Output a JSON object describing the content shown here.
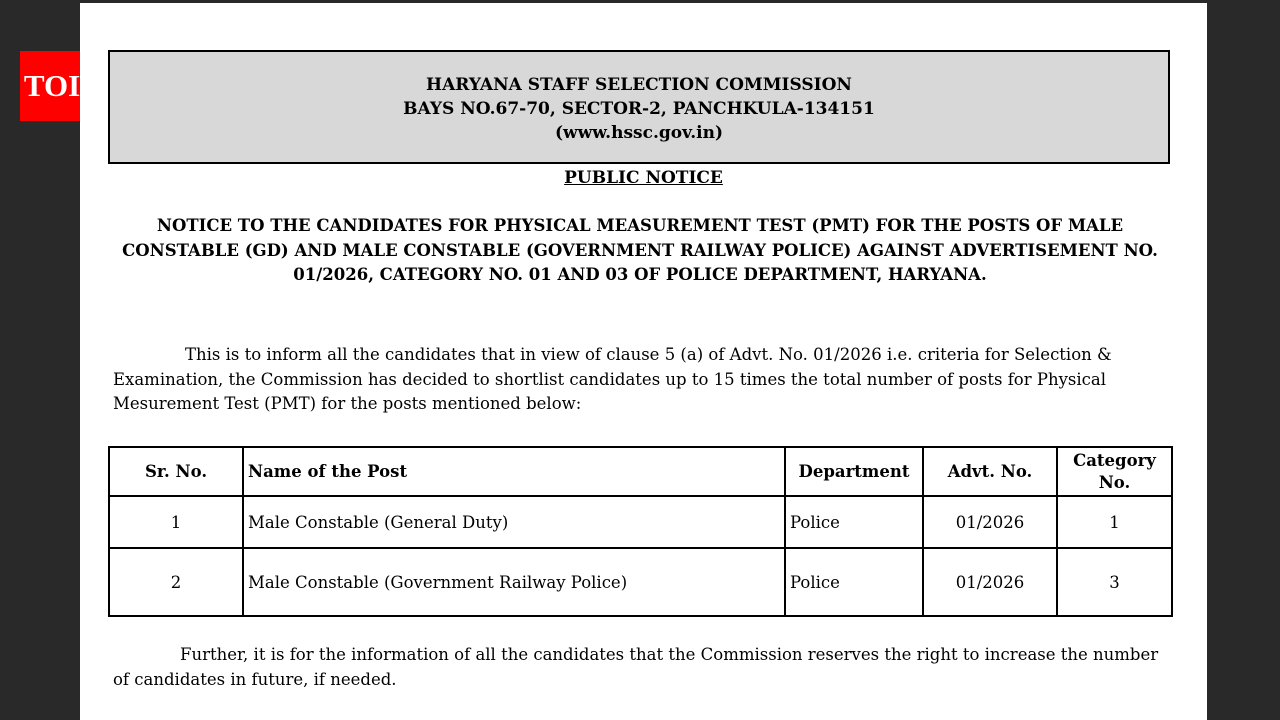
{
  "logo": "TOI",
  "header": {
    "line1": "HARYANA STAFF SELECTION COMMISSION",
    "line2": "BAYS NO.67-70, SECTOR-2, PANCHKULA-134151",
    "line3": "(www.hssc.gov.in)"
  },
  "public_notice": "PUBLIC NOTICE",
  "title": "NOTICE TO THE CANDIDATES FOR PHYSICAL MEASUREMENT TEST (PMT) FOR THE POSTS OF MALE CONSTABLE  (GD) AND MALE CONSTABLE (GOVERNMENT RAILWAY POLICE) AGAINST ADVERTISEMENT NO. 01/2026, CATEGORY NO. 01 AND 03 OF POLICE DEPARTMENT, HARYANA.",
  "para1": "This is to inform all the candidates that in view of clause 5 (a) of Advt. No. 01/2026 i.e. criteria for Selection & Examination, the Commission has decided to shortlist candidates up to 15 times the total number of posts for Physical Mesurement Test (PMT) for the posts mentioned below:",
  "table": {
    "headers": [
      "Sr. No.",
      "Name of the Post",
      "Department",
      "Advt. No.",
      "Category No."
    ],
    "rows": [
      [
        "1",
        "Male Constable (General Duty)",
        "Police",
        "01/2026",
        "1"
      ],
      [
        "2",
        "Male Constable (Government Railway Police)",
        "Police",
        "01/2026",
        "3"
      ]
    ]
  },
  "para2": "Further, it is for the information of all the candidates that the Commission reserves the right to increase the number of candidates in future, if needed."
}
